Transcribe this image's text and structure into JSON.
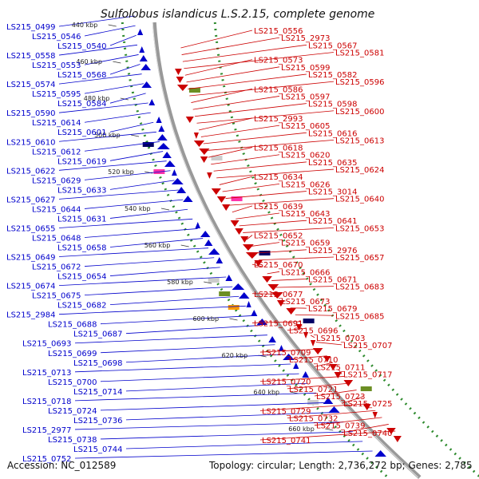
{
  "title": "Sulfolobus islandicus L.S.2.15, complete genome",
  "accession": "Accession: NC_012589",
  "topology": "Topology: circular; Length: 2,736,272 bp; Genes: 2,785",
  "colors": {
    "forward": "#0000cc",
    "reverse": "#cc0000",
    "backbone": "#999999",
    "grid": "#2e8b2e"
  },
  "ticks": [
    "440 kbp",
    "460 kbp",
    "480 kbp",
    "500 kbp",
    "520 kbp",
    "540 kbp",
    "560 kbp",
    "580 kbp",
    "600 kbp",
    "620 kbp",
    "640 kbp",
    "660 kbp"
  ],
  "left_labels": [
    "LS215_0499",
    "LS215_0546",
    "LS215_0540",
    "LS215_0558",
    "LS215_0553",
    "LS215_0568",
    "LS215_0574",
    "LS215_0595",
    "LS215_0584",
    "LS215_0590",
    "LS215_0614",
    "LS215_0601",
    "LS215_0610",
    "LS215_0612",
    "LS215_0619",
    "LS215_0622",
    "LS215_0629",
    "LS215_0633",
    "LS215_0627",
    "LS215_0644",
    "LS215_0631",
    "LS215_0655",
    "LS215_0648",
    "LS215_0658",
    "LS215_0649",
    "LS215_0672",
    "LS215_0654",
    "LS215_0674",
    "LS215_0675",
    "LS215_0682",
    "LS215_2984",
    "LS215_0688",
    "LS215_0687",
    "LS215_0693",
    "LS215_0699",
    "LS215_0698",
    "LS215_0713",
    "LS215_0700",
    "LS215_0714",
    "LS215_0718",
    "LS215_0724",
    "LS215_0736",
    "LS215_2977",
    "LS215_0738",
    "LS215_0744",
    "LS215_0752"
  ],
  "right_labels": [
    "LS215_0556",
    "LS215_2973",
    "LS215_0567",
    "LS215_0581",
    "LS215_0573",
    "LS215_0599",
    "LS215_0582",
    "LS215_0596",
    "LS215_0586",
    "LS215_0597",
    "LS215_0598",
    "LS215_0600",
    "LS215_2993",
    "LS215_0605",
    "LS215_0616",
    "LS215_0613",
    "LS215_0618",
    "LS215_0620",
    "LS215_0635",
    "LS215_0624",
    "LS215_0634",
    "LS215_0626",
    "LS215_3014",
    "LS215_0640",
    "LS215_0639",
    "LS215_0643",
    "LS215_0641",
    "LS215_0653",
    "LS215_0652",
    "LS215_0659",
    "LS215_2976",
    "LS215_0657",
    "LS215_0670",
    "LS215_0666",
    "LS215_0671",
    "LS215_0683",
    "LS215_0677",
    "LS215_0673",
    "LS215_0679",
    "LS215_0685",
    "LS215_0691",
    "LS215_0696",
    "LS215_0703",
    "LS215_0707",
    "LS215_0709",
    "LS215_0710",
    "LS215_0711",
    "LS215_0717",
    "LS215_0720",
    "LS215_0721",
    "LS215_0723",
    "LS215_0725",
    "LS215_0729",
    "LS215_0732",
    "LS215_0739",
    "LS215_0740",
    "LS215_0741"
  ]
}
